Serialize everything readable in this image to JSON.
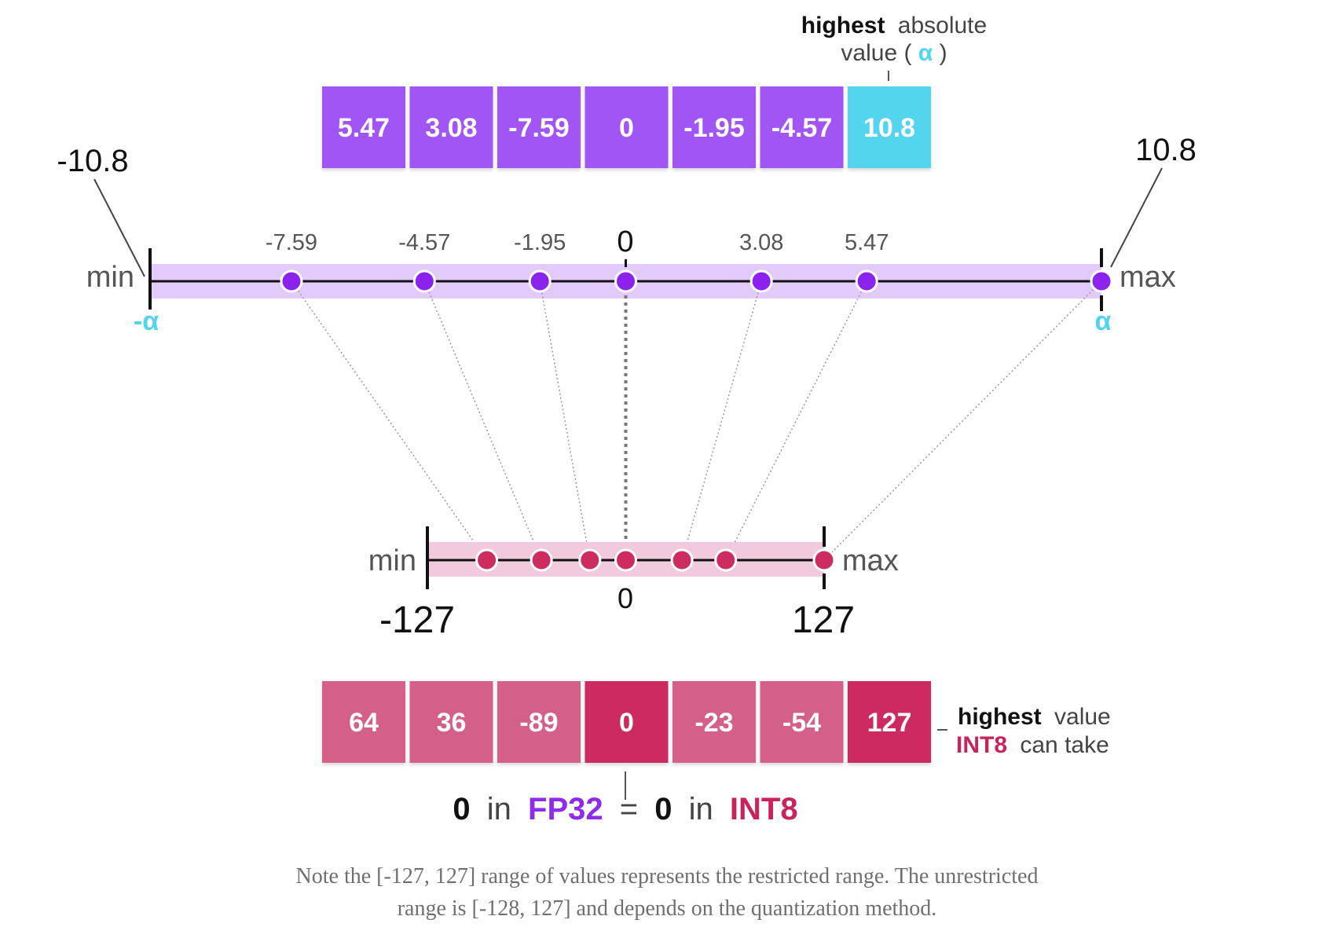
{
  "fp32": {
    "values": [
      5.47,
      3.08,
      -7.59,
      0,
      -1.95,
      -4.57,
      10.8
    ],
    "labels": [
      "5.47",
      "3.08",
      "-7.59",
      "0",
      "-1.95",
      "-4.57",
      "10.8"
    ],
    "highlight_index": 6,
    "highest_label_bold": "highest",
    "highest_label_rest": "absolute",
    "highest_label_line2_a": "value (",
    "highest_label_alpha": "α",
    "highest_label_line2_b": ")",
    "left_value": "-10.8",
    "right_value": "10.8",
    "min_label": "min",
    "max_label": "max",
    "neg_alpha": "-α",
    "pos_alpha": "α",
    "axis_min": -10.8,
    "axis_max": 10.8,
    "zero_label": "0"
  },
  "int8": {
    "values": [
      64,
      36,
      -89,
      0,
      -23,
      -54,
      127
    ],
    "labels": [
      "64",
      "36",
      "-89",
      "0",
      "-23",
      "-54",
      "127"
    ],
    "highlight_index": 6,
    "min_label": "min",
    "max_label": "max",
    "left_value": "-127",
    "right_value": "127",
    "zero_label": "0",
    "axis_min": -127,
    "axis_max": 127,
    "highest_bold": "highest",
    "highest_rest": "value",
    "highest_line2_bold": "INT8",
    "highest_line2_rest": "can take"
  },
  "equation": {
    "zero_a": "0",
    "in_a": "in",
    "fp32": "FP32",
    "equals": "=",
    "zero_b": "0",
    "in_b": "in",
    "int8": "INT8"
  },
  "colors": {
    "purple_cell": "#a155f5",
    "purple_dot": "#8b22ee",
    "purple_band": "#e2cbfb",
    "cyan": "#52d4ef",
    "pink_cell": "#d4608a",
    "pink_dark": "#cc2c60",
    "pink_band": "#f2cadd",
    "pink_text": "#c8245c",
    "purple_text": "#8e2bec"
  },
  "caption": {
    "line1": "Note the [-127, 127] range of values represents the restricted range. The unrestricted",
    "line2": "range is [-128, 127] and depends on the quantization method."
  }
}
